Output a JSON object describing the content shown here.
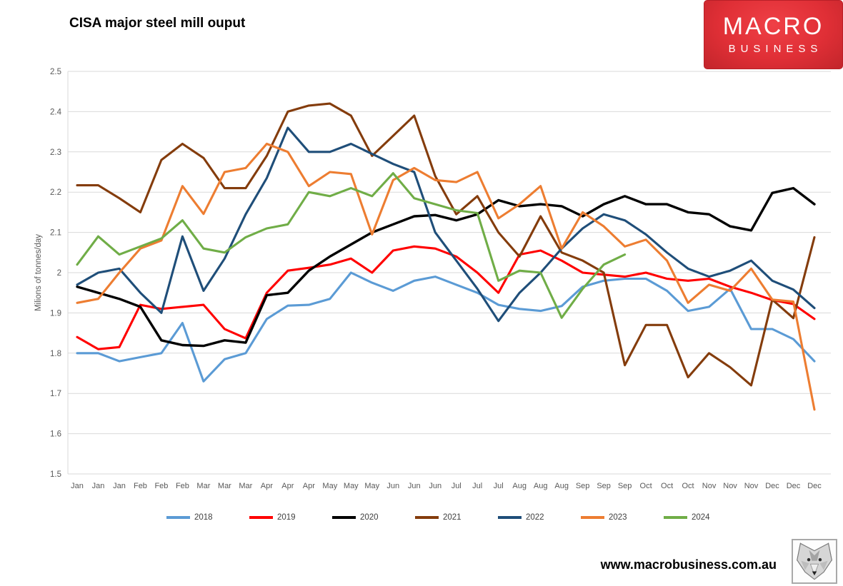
{
  "header": {
    "title": "CISA major steel mill ouput",
    "logo": {
      "line1": "MACRO",
      "line2": "BUSINESS",
      "bg_color": "#dd2c33",
      "text_color": "#ffffff"
    }
  },
  "footer": {
    "website": "www.macrobusiness.com.au",
    "wolf_logo": "wolf-face-illustration"
  },
  "chart_data": {
    "type": "line",
    "title": "CISA major steel mill ouput",
    "xlabel": "",
    "ylabel": "Milions of tonnes/day",
    "ylim": [
      1.5,
      2.5
    ],
    "ytick_labels": [
      "2.5",
      "2.4",
      "2.3",
      "2.2",
      "2.1",
      "2",
      "1.9",
      "1.8",
      "1.7",
      "1.6",
      "1.5"
    ],
    "grid": true,
    "gridline_color": "#d9d9d9",
    "axis_text_color": "#595959",
    "legend_position": "bottom",
    "categories": [
      "Jan",
      "Jan",
      "Jan",
      "Feb",
      "Feb",
      "Feb",
      "Mar",
      "Mar",
      "Mar",
      "Apr",
      "Apr",
      "Apr",
      "May",
      "May",
      "May",
      "Jun",
      "Jun",
      "Jun",
      "Jul",
      "Jul",
      "Jul",
      "Aug",
      "Aug",
      "Aug",
      "Sep",
      "Sep",
      "Sep",
      "Oct",
      "Oct",
      "Oct",
      "Nov",
      "Nov",
      "Nov",
      "Dec",
      "Dec",
      "Dec"
    ],
    "series": [
      {
        "name": "2018",
        "color": "#5B9BD5",
        "values": [
          1.8,
          1.8,
          1.78,
          1.79,
          1.8,
          1.875,
          1.73,
          1.785,
          1.8,
          1.885,
          1.918,
          1.92,
          1.935,
          2.0,
          1.975,
          1.955,
          1.98,
          1.99,
          1.97,
          1.95,
          1.92,
          1.91,
          1.905,
          1.917,
          1.965,
          1.98,
          1.985,
          1.985,
          1.955,
          1.905,
          1.915,
          1.96,
          1.86,
          1.86,
          1.835,
          1.78
        ]
      },
      {
        "name": "2019",
        "color": "#FF0000",
        "values": [
          1.84,
          1.81,
          1.815,
          1.92,
          1.91,
          1.915,
          1.92,
          1.86,
          1.837,
          1.95,
          2.005,
          2.012,
          2.02,
          2.035,
          2.0,
          2.055,
          2.065,
          2.06,
          2.04,
          2.0,
          1.95,
          2.045,
          2.055,
          2.03,
          2.0,
          1.995,
          1.99,
          2.0,
          1.985,
          1.98,
          1.985,
          1.965,
          1.95,
          1.932,
          1.922,
          1.885
        ]
      },
      {
        "name": "2020",
        "color": "#000000",
        "values": [
          1.965,
          1.95,
          1.935,
          1.915,
          1.832,
          1.82,
          1.818,
          1.832,
          1.826,
          1.944,
          1.95,
          2.005,
          2.04,
          2.07,
          2.1,
          2.12,
          2.14,
          2.143,
          2.13,
          2.145,
          2.18,
          2.165,
          2.17,
          2.165,
          2.14,
          2.17,
          2.19,
          2.17,
          2.17,
          2.15,
          2.145,
          2.115,
          2.105,
          2.198,
          2.21,
          2.17
        ]
      },
      {
        "name": "2021",
        "color": "#843C0C",
        "values": [
          2.217,
          2.217,
          2.185,
          2.15,
          2.28,
          2.32,
          2.285,
          2.21,
          2.21,
          2.29,
          2.4,
          2.415,
          2.42,
          2.39,
          2.29,
          2.34,
          2.39,
          2.24,
          2.145,
          2.19,
          2.1,
          2.04,
          2.14,
          2.05,
          2.03,
          2.0,
          1.77,
          1.87,
          1.87,
          1.74,
          1.8,
          1.765,
          1.72,
          1.933,
          1.887,
          2.088
        ]
      },
      {
        "name": "2022",
        "color": "#1F4E79",
        "values": [
          1.97,
          2.0,
          2.01,
          1.95,
          1.9,
          2.09,
          1.955,
          2.035,
          2.145,
          2.235,
          2.36,
          2.3,
          2.3,
          2.32,
          2.295,
          2.27,
          2.25,
          2.1,
          2.03,
          1.96,
          1.88,
          1.95,
          2.0,
          2.06,
          2.11,
          2.145,
          2.13,
          2.095,
          2.05,
          2.01,
          1.99,
          2.005,
          2.03,
          1.98,
          1.958,
          1.912
        ]
      },
      {
        "name": "2023",
        "color": "#ED7D31",
        "values": [
          1.925,
          1.935,
          2.0,
          2.06,
          2.08,
          2.215,
          2.146,
          2.25,
          2.26,
          2.32,
          2.3,
          2.215,
          2.25,
          2.245,
          2.095,
          2.23,
          2.26,
          2.23,
          2.225,
          2.25,
          2.135,
          2.17,
          2.215,
          2.06,
          2.15,
          2.115,
          2.065,
          2.082,
          2.03,
          1.925,
          1.97,
          1.955,
          2.01,
          1.933,
          1.928,
          1.66
        ]
      },
      {
        "name": "2024",
        "color": "#70AD47",
        "values": [
          2.02,
          2.09,
          2.045,
          2.065,
          2.085,
          2.13,
          2.06,
          2.05,
          2.088,
          2.11,
          2.12,
          2.2,
          2.19,
          2.21,
          2.19,
          2.247,
          2.185,
          2.17,
          2.155,
          2.148,
          1.98,
          2.005,
          2.0,
          1.888,
          1.96,
          2.02,
          2.045
        ]
      }
    ]
  }
}
